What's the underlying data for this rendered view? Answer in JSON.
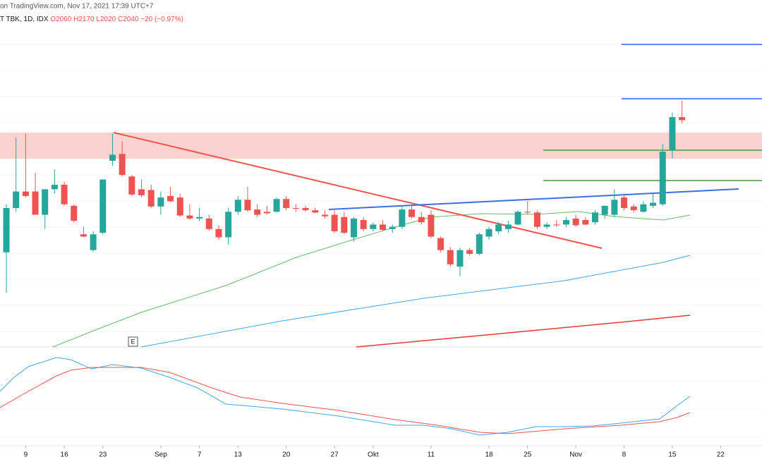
{
  "header": {
    "source": "on TradingView.com, Nov 17, 2021 17:39 UTC+7",
    "symbol": "T TBK, 1D, IDX",
    "ohlc": [
      "O2060",
      "H2170",
      "L2020",
      "C2040"
    ],
    "change": "−20 (−0.97%)"
  },
  "chart_data": {
    "type": "candlestick",
    "up_color": "#26a69a",
    "down_color": "#ef5350",
    "ylim": [
      530,
      2840
    ],
    "earnings_marker": "E",
    "xticks": [
      {
        "value": 2,
        "label": "9"
      },
      {
        "value": 6,
        "label": "16"
      },
      {
        "value": 10,
        "label": "23"
      },
      {
        "value": 16,
        "label": "Sep"
      },
      {
        "value": 20,
        "label": "7"
      },
      {
        "value": 24,
        "label": "13"
      },
      {
        "value": 29,
        "label": "20"
      },
      {
        "value": 34,
        "label": "27"
      },
      {
        "value": 38,
        "label": "Okt"
      },
      {
        "value": 44,
        "label": "11"
      },
      {
        "value": 50,
        "label": "18"
      },
      {
        "value": 54,
        "label": "25"
      },
      {
        "value": 59,
        "label": "Nov"
      },
      {
        "value": 64,
        "label": "8"
      },
      {
        "value": 69,
        "label": "15"
      },
      {
        "value": 74,
        "label": "22"
      }
    ],
    "open": [
      1160,
      1455,
      1565,
      1565,
      1410,
      1580,
      1610,
      1470,
      1280,
      1175,
      1290,
      1770,
      1815,
      1665,
      1580,
      1575,
      1465,
      1535,
      1525,
      1405,
      1385,
      1385,
      1315,
      1260,
      1430,
      1510,
      1445,
      1430,
      1430,
      1515,
      1455,
      1455,
      1440,
      1410,
      1410,
      1395,
      1260,
      1375,
      1315,
      1345,
      1315,
      1330,
      1445,
      1395,
      1410,
      1255,
      1175,
      1065,
      1175,
      1150,
      1265,
      1300,
      1315,
      1345,
      1430,
      1425,
      1330,
      1345,
      1345,
      1385,
      1375,
      1360,
      1410,
      1410,
      1525,
      1465,
      1430,
      1470,
      1480,
      1840,
      2060
    ],
    "high": [
      1480,
      1925,
      1950,
      1690,
      1580,
      1714,
      1630,
      1480,
      1330,
      1300,
      1645,
      1950,
      1900,
      1675,
      1645,
      1610,
      1565,
      1595,
      1550,
      1480,
      1455,
      1410,
      1340,
      1455,
      1535,
      1595,
      1480,
      1470,
      1525,
      1535,
      1480,
      1470,
      1455,
      1440,
      1440,
      1430,
      1395,
      1395,
      1360,
      1375,
      1345,
      1465,
      1470,
      1430,
      1440,
      1265,
      1195,
      1190,
      1190,
      1290,
      1330,
      1360,
      1370,
      1440,
      1500,
      1440,
      1360,
      1375,
      1395,
      1410,
      1395,
      1440,
      1470,
      1580,
      1550,
      1480,
      1500,
      1550,
      1880,
      2090,
      2170
    ],
    "low": [
      890,
      1430,
      1525,
      1410,
      1315,
      1550,
      1470,
      1360,
      1260,
      1165,
      1280,
      1735,
      1665,
      1535,
      1525,
      1455,
      1410,
      1495,
      1395,
      1375,
      1370,
      1305,
      1245,
      1210,
      1410,
      1430,
      1395,
      1410,
      1425,
      1440,
      1430,
      1430,
      1420,
      1385,
      1290,
      1280,
      1235,
      1300,
      1300,
      1300,
      1290,
      1315,
      1385,
      1345,
      1255,
      1160,
      1065,
      1000,
      1140,
      1140,
      1245,
      1280,
      1290,
      1340,
      1410,
      1315,
      1315,
      1330,
      1330,
      1330,
      1340,
      1345,
      1385,
      1395,
      1440,
      1425,
      1425,
      1455,
      1470,
      1785,
      2020
    ],
    "close": [
      1455,
      1565,
      1535,
      1410,
      1580,
      1610,
      1480,
      1370,
      1265,
      1280,
      1645,
      1810,
      1675,
      1545,
      1540,
      1465,
      1525,
      1500,
      1405,
      1385,
      1395,
      1315,
      1260,
      1430,
      1510,
      1440,
      1410,
      1420,
      1515,
      1455,
      1450,
      1440,
      1425,
      1400,
      1300,
      1290,
      1385,
      1315,
      1345,
      1310,
      1330,
      1445,
      1395,
      1360,
      1265,
      1175,
      1080,
      1175,
      1150,
      1280,
      1315,
      1345,
      1345,
      1430,
      1425,
      1330,
      1345,
      1340,
      1375,
      1340,
      1345,
      1425,
      1470,
      1510,
      1455,
      1440,
      1480,
      1490,
      1830,
      2060,
      2040
    ]
  }
}
